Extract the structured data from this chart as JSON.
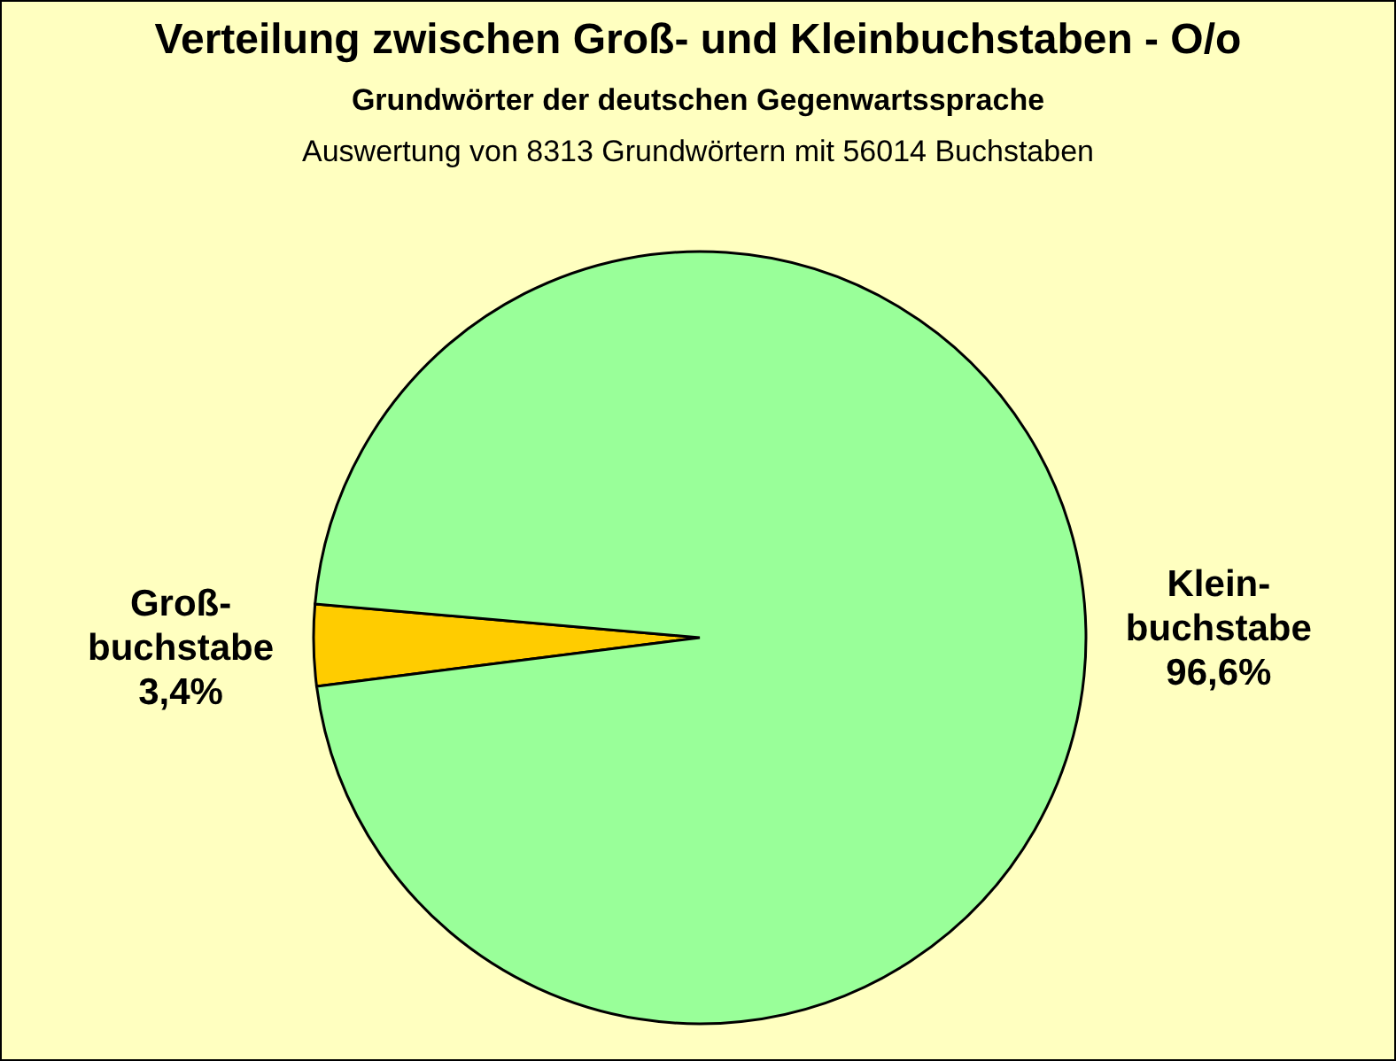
{
  "chart_data": {
    "type": "pie",
    "title": "Verteilung zwischen Groß- und  Kleinbuchstaben - O/o",
    "subtitle": "Grundwörter der deutschen Gegenwartssprache",
    "annotations": [
      "Auswertung von 8313 Grundwörtern mit 56014 Buchstaben"
    ],
    "categories": [
      "Groß-buchstabe",
      "Klein-buchstabe"
    ],
    "values": [
      3.4,
      96.6
    ],
    "value_labels": [
      "3,4%",
      "96,6%"
    ],
    "colors": [
      "#ffcc00",
      "#99ff99"
    ]
  }
}
